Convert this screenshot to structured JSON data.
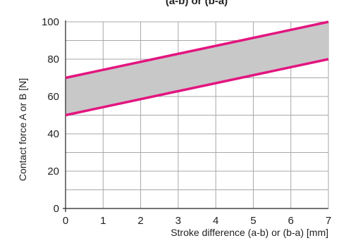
{
  "chart_data": {
    "type": "area",
    "title": "(a-b) or (b-a)",
    "xlabel": "Stroke difference (a-b) or (b-a) [mm]",
    "ylabel": "Contact force A or B [N]",
    "xlim": [
      0,
      7
    ],
    "ylim": [
      0,
      100
    ],
    "x_ticks": [
      "0",
      "1",
      "2",
      "3",
      "4",
      "5",
      "6",
      "7"
    ],
    "y_ticks": [
      "0",
      "20",
      "40",
      "60",
      "80",
      "100"
    ],
    "grid": true,
    "band_color": "#c8c8c8",
    "line_color": "#e3157f",
    "series": [
      {
        "x": [
          0,
          7
        ],
        "values": [
          70,
          100
        ]
      },
      {
        "x": [
          0,
          7
        ],
        "values": [
          50,
          80
        ]
      }
    ]
  }
}
